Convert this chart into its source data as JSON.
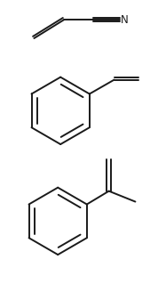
{
  "bg_color": "#ffffff",
  "line_color": "#1a1a1a",
  "line_width": 1.4,
  "fig_width": 1.78,
  "fig_height": 3.37,
  "dpi": 100
}
